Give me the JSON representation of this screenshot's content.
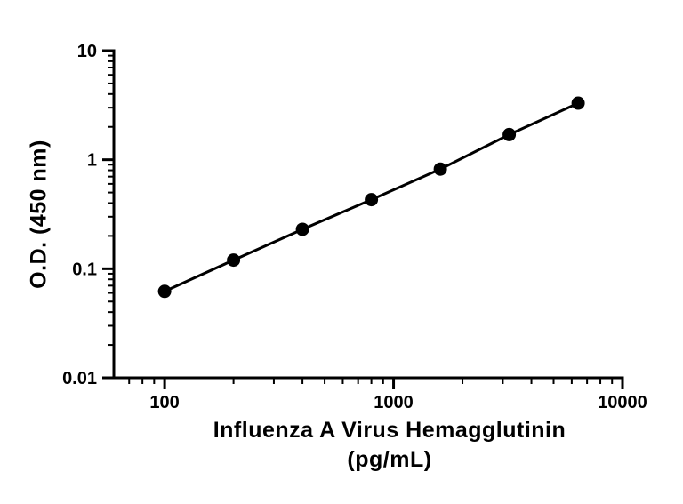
{
  "chart_data": {
    "type": "line",
    "title": "",
    "xlabel_line1": "Influenza A Virus Hemagglutinin",
    "xlabel_line2": "(pg/mL)",
    "ylabel": "O.D. (450 nm)",
    "x_scale": "log",
    "y_scale": "log",
    "xlim": [
      60,
      10000
    ],
    "ylim": [
      0.01,
      10
    ],
    "x": [
      100,
      200,
      400,
      800,
      1600,
      3200,
      6400
    ],
    "y": [
      0.062,
      0.12,
      0.23,
      0.43,
      0.82,
      1.7,
      3.3
    ],
    "x_ticks": [
      {
        "value": 100,
        "label": "100"
      },
      {
        "value": 1000,
        "label": "1000"
      },
      {
        "value": 10000,
        "label": "10000"
      }
    ],
    "y_ticks": [
      {
        "value": 0.01,
        "label": "0.01"
      },
      {
        "value": 0.1,
        "label": "0.1"
      },
      {
        "value": 1,
        "label": "1"
      },
      {
        "value": 10,
        "label": "10"
      }
    ],
    "grid": false,
    "legend": "none",
    "line_color": "#000000",
    "marker_color": "#000000",
    "axis_color": "#000000"
  }
}
